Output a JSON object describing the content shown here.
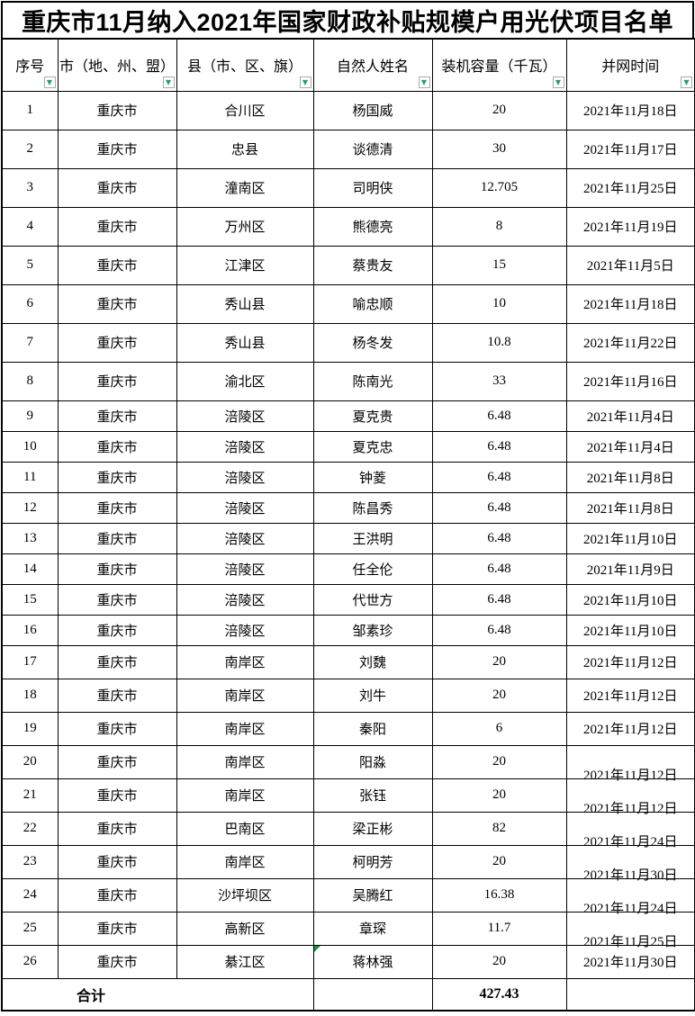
{
  "title": "重庆市11月纳入2021年国家财政补贴规模户用光伏项目名单",
  "columns": [
    {
      "key": "no",
      "label": "序号"
    },
    {
      "key": "city",
      "label": "市（地、州、盟）"
    },
    {
      "key": "county",
      "label": "县（市、区、旗）"
    },
    {
      "key": "name",
      "label": "自然人姓名"
    },
    {
      "key": "capacity",
      "label": "装机容量（千瓦）"
    },
    {
      "key": "date",
      "label": "并网时间"
    }
  ],
  "filter_icon": "▼",
  "rows": [
    {
      "no": "1",
      "city": "重庆市",
      "county": "合川区",
      "name": "杨国威",
      "capacity": "20",
      "date": "2021年11月18日"
    },
    {
      "no": "2",
      "city": "重庆市",
      "county": "忠县",
      "name": "谈德清",
      "capacity": "30",
      "date": "2021年11月17日"
    },
    {
      "no": "3",
      "city": "重庆市",
      "county": "潼南区",
      "name": "司明侠",
      "capacity": "12.705",
      "date": "2021年11月25日"
    },
    {
      "no": "4",
      "city": "重庆市",
      "county": "万州区",
      "name": "熊德亮",
      "capacity": "8",
      "date": "2021年11月19日"
    },
    {
      "no": "5",
      "city": "重庆市",
      "county": "江津区",
      "name": "蔡贵友",
      "capacity": "15",
      "date": "2021年11月5日"
    },
    {
      "no": "6",
      "city": "重庆市",
      "county": "秀山县",
      "name": "喻忠顺",
      "capacity": "10",
      "date": "2021年11月18日"
    },
    {
      "no": "7",
      "city": "重庆市",
      "county": "秀山县",
      "name": "杨冬发",
      "capacity": "10.8",
      "date": "2021年11月22日"
    },
    {
      "no": "8",
      "city": "重庆市",
      "county": "渝北区",
      "name": "陈南光",
      "capacity": "33",
      "date": "2021年11月16日"
    },
    {
      "no": "9",
      "city": "重庆市",
      "county": "涪陵区",
      "name": "夏克贵",
      "capacity": "6.48",
      "date": "2021年11月4日"
    },
    {
      "no": "10",
      "city": "重庆市",
      "county": "涪陵区",
      "name": "夏克忠",
      "capacity": "6.48",
      "date": "2021年11月4日"
    },
    {
      "no": "11",
      "city": "重庆市",
      "county": "涪陵区",
      "name": "钟菱",
      "capacity": "6.48",
      "date": "2021年11月8日"
    },
    {
      "no": "12",
      "city": "重庆市",
      "county": "涪陵区",
      "name": "陈昌秀",
      "capacity": "6.48",
      "date": "2021年11月8日"
    },
    {
      "no": "13",
      "city": "重庆市",
      "county": "涪陵区",
      "name": "王洪明",
      "capacity": "6.48",
      "date": "2021年11月10日"
    },
    {
      "no": "14",
      "city": "重庆市",
      "county": "涪陵区",
      "name": "任全伦",
      "capacity": "6.48",
      "date": "2021年11月9日"
    },
    {
      "no": "15",
      "city": "重庆市",
      "county": "涪陵区",
      "name": "代世方",
      "capacity": "6.48",
      "date": "2021年11月10日"
    },
    {
      "no": "16",
      "city": "重庆市",
      "county": "涪陵区",
      "name": "邹素珍",
      "capacity": "6.48",
      "date": "2021年11月10日"
    },
    {
      "no": "17",
      "city": "重庆市",
      "county": "南岸区",
      "name": "刘魏",
      "capacity": "20",
      "date": "2021年11月12日"
    },
    {
      "no": "18",
      "city": "重庆市",
      "county": "南岸区",
      "name": "刘牛",
      "capacity": "20",
      "date": "2021年11月12日"
    },
    {
      "no": "19",
      "city": "重庆市",
      "county": "南岸区",
      "name": "秦阳",
      "capacity": "6",
      "date": "2021年11月12日"
    },
    {
      "no": "20",
      "city": "重庆市",
      "county": "南岸区",
      "name": "阳淼",
      "capacity": "20",
      "date": "2021年11月12日",
      "date_low": true
    },
    {
      "no": "21",
      "city": "重庆市",
      "county": "南岸区",
      "name": "张钰",
      "capacity": "20",
      "date": "2021年11月12日",
      "date_low": true
    },
    {
      "no": "22",
      "city": "重庆市",
      "county": "巴南区",
      "name": "梁正彬",
      "capacity": "82",
      "date": "2021年11月24日",
      "date_low": true
    },
    {
      "no": "23",
      "city": "重庆市",
      "county": "南岸区",
      "name": "柯明芳",
      "capacity": "20",
      "date": "2021年11月30日",
      "date_low": true
    },
    {
      "no": "24",
      "city": "重庆市",
      "county": "沙坪坝区",
      "name": "吴腾红",
      "capacity": "16.38",
      "date": "2021年11月24日",
      "date_low": true
    },
    {
      "no": "25",
      "city": "重庆市",
      "county": "高新区",
      "name": "章琛",
      "capacity": "11.7",
      "date": "2021年11月25日",
      "date_low": true
    },
    {
      "no": "26",
      "city": "重庆市",
      "county": "綦江区",
      "name": "蒋林强",
      "capacity": "20",
      "date": "2021年11月30日",
      "flag": true
    }
  ],
  "total_row": {
    "label": "合计",
    "capacity": "427.43"
  },
  "colors": {
    "border": "#000000",
    "background": "#ffffff",
    "filter_arrow_green": "#21a366",
    "filter_button_border": "#ababab",
    "comment_flag_green": "#149641"
  }
}
